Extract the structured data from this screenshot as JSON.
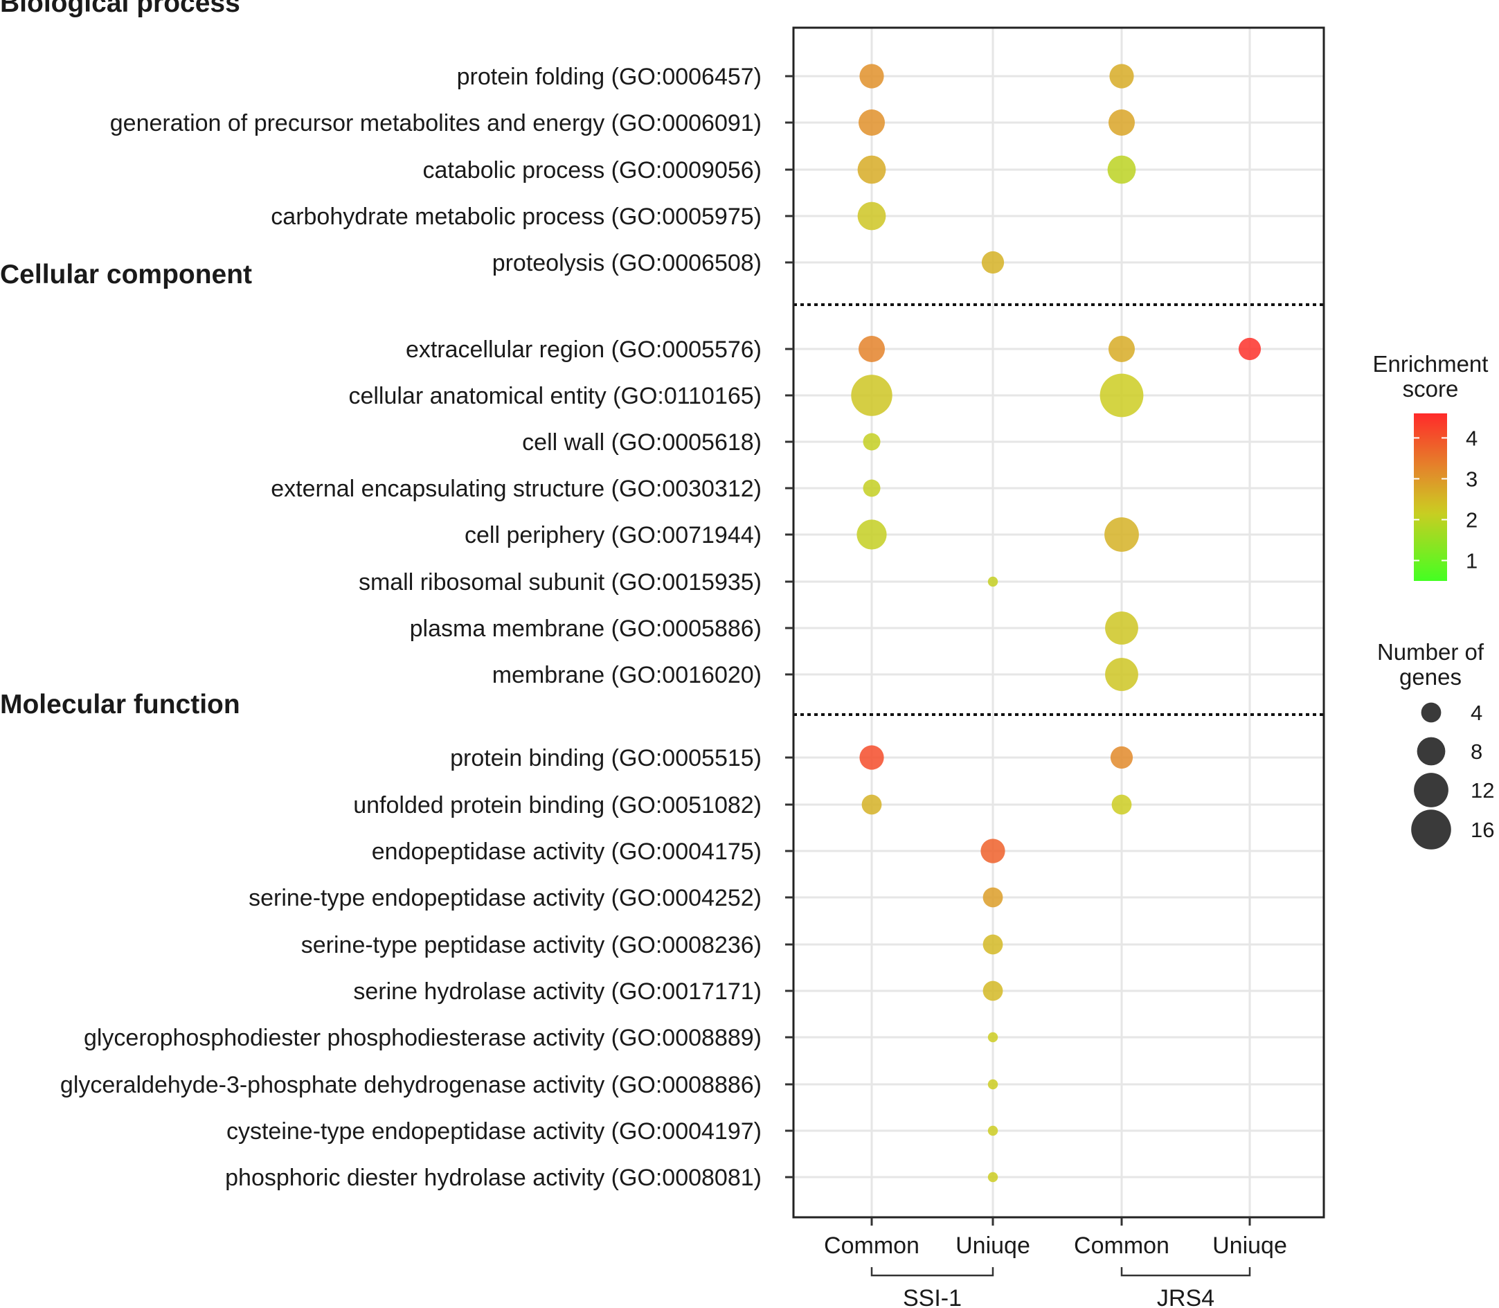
{
  "chart_data": {
    "type": "scatter",
    "x_categories": [
      "Common",
      "Uniuqe",
      "Common",
      "Uniuqe"
    ],
    "x_groups": [
      {
        "label": "SSI-1",
        "columns": [
          0,
          1
        ]
      },
      {
        "label": "JRS4",
        "columns": [
          2,
          3
        ]
      }
    ],
    "sections": [
      {
        "title": "Biological process",
        "rows": [
          {
            "label": "protein folding (GO:0006457)",
            "points": [
              {
                "col": 0,
                "genes": 6,
                "score": 3.1
              },
              {
                "col": 2,
                "genes": 6,
                "score": 2.7
              }
            ]
          },
          {
            "label": "generation of precursor metabolites and energy (GO:0006091)",
            "points": [
              {
                "col": 0,
                "genes": 7,
                "score": 3.1
              },
              {
                "col": 2,
                "genes": 7,
                "score": 2.8
              }
            ]
          },
          {
            "label": "catabolic process (GO:0009056)",
            "points": [
              {
                "col": 0,
                "genes": 8,
                "score": 2.7
              },
              {
                "col": 2,
                "genes": 8,
                "score": 2.0
              }
            ]
          },
          {
            "label": "carbohydrate metabolic process (GO:0005975)",
            "points": [
              {
                "col": 0,
                "genes": 8,
                "score": 2.3
              }
            ]
          },
          {
            "label": "proteolysis (GO:0006508)",
            "points": [
              {
                "col": 1,
                "genes": 5,
                "score": 2.6
              }
            ]
          }
        ]
      },
      {
        "title": "Cellular component",
        "rows": [
          {
            "label": "extracellular region (GO:0005576)",
            "points": [
              {
                "col": 0,
                "genes": 7,
                "score": 3.3
              },
              {
                "col": 2,
                "genes": 7,
                "score": 2.7
              },
              {
                "col": 3,
                "genes": 5,
                "score": 4.5
              }
            ]
          },
          {
            "label": "cellular anatomical entity (GO:0110165)",
            "points": [
              {
                "col": 0,
                "genes": 17,
                "score": 2.3
              },
              {
                "col": 2,
                "genes": 19,
                "score": 2.2
              }
            ]
          },
          {
            "label": "cell wall (GO:0005618)",
            "points": [
              {
                "col": 0,
                "genes": 3,
                "score": 2.1
              }
            ]
          },
          {
            "label": "external encapsulating structure (GO:0030312)",
            "points": [
              {
                "col": 0,
                "genes": 3,
                "score": 2.1
              }
            ]
          },
          {
            "label": "cell periphery (GO:0071944)",
            "points": [
              {
                "col": 0,
                "genes": 9,
                "score": 2.1
              },
              {
                "col": 2,
                "genes": 12,
                "score": 2.6
              }
            ]
          },
          {
            "label": "small ribosomal subunit (GO:0015935)",
            "points": [
              {
                "col": 1,
                "genes": 1,
                "score": 2.1
              }
            ]
          },
          {
            "label": "plasma membrane (GO:0005886)",
            "points": [
              {
                "col": 2,
                "genes": 11,
                "score": 2.3
              }
            ]
          },
          {
            "label": "membrane (GO:0016020)",
            "points": [
              {
                "col": 2,
                "genes": 11,
                "score": 2.3
              }
            ]
          }
        ]
      },
      {
        "title": "Molecular function",
        "rows": [
          {
            "label": "protein binding (GO:0005515)",
            "points": [
              {
                "col": 0,
                "genes": 6,
                "score": 4.1
              },
              {
                "col": 2,
                "genes": 5,
                "score": 3.2
              }
            ]
          },
          {
            "label": "unfolded protein binding (GO:0051082)",
            "points": [
              {
                "col": 0,
                "genes": 4,
                "score": 2.6
              },
              {
                "col": 2,
                "genes": 4,
                "score": 2.2
              }
            ]
          },
          {
            "label": "endopeptidase activity (GO:0004175)",
            "points": [
              {
                "col": 1,
                "genes": 6,
                "score": 3.8
              }
            ]
          },
          {
            "label": "serine-type endopeptidase activity (GO:0004252)",
            "points": [
              {
                "col": 1,
                "genes": 4,
                "score": 2.9
              }
            ]
          },
          {
            "label": "serine-type peptidase activity (GO:0008236)",
            "points": [
              {
                "col": 1,
                "genes": 4,
                "score": 2.5
              }
            ]
          },
          {
            "label": "serine hydrolase activity (GO:0017171)",
            "points": [
              {
                "col": 1,
                "genes": 4,
                "score": 2.5
              }
            ]
          },
          {
            "label": "glycerophosphodiester phosphodiesterase activity (GO:0008889)",
            "points": [
              {
                "col": 1,
                "genes": 1,
                "score": 2.2
              }
            ]
          },
          {
            "label": "glyceraldehyde-3-phosphate dehydrogenase activity (GO:0008886)",
            "points": [
              {
                "col": 1,
                "genes": 1,
                "score": 2.2
              }
            ]
          },
          {
            "label": "cysteine-type endopeptidase activity (GO:0004197)",
            "points": [
              {
                "col": 1,
                "genes": 1,
                "score": 2.2
              }
            ]
          },
          {
            "label": "phosphoric diester hydrolase activity (GO:0008081)",
            "points": [
              {
                "col": 1,
                "genes": 1,
                "score": 2.2
              }
            ]
          }
        ]
      }
    ],
    "color_legend": {
      "title_lines": [
        "Enrichment",
        "score"
      ],
      "ticks": [
        4,
        3,
        2,
        1
      ],
      "range": [
        0.5,
        4.6
      ],
      "colors": {
        "low": "#44ff22",
        "mid": "#cccc22",
        "midhigh": "#e0902a",
        "high": "#ff2a2a"
      }
    },
    "size_legend": {
      "title_lines": [
        "Number of",
        "genes"
      ],
      "values": [
        4,
        8,
        12,
        16
      ]
    }
  }
}
